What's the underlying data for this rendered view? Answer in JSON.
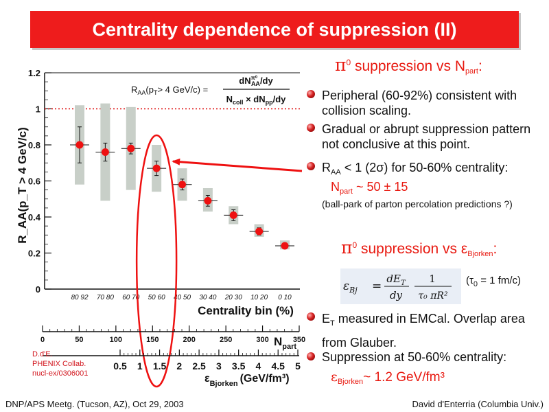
{
  "slide": {
    "title": "Centrality dependence of suppression (II)",
    "footer_left": "DNP/APS Meetg. (Tucson, AZ), Oct 29, 2003",
    "footer_right": "David d'Enterria (Columbia Univ.)"
  },
  "credits": [
    "D.d'E.",
    "PHENIX Collab.",
    "nucl-ex/0306001"
  ],
  "right_panel": {
    "heading1": {
      "symbol": "π",
      "sup": "0",
      "text": " suppression vs N",
      "sub": "part",
      "end": ":"
    },
    "bullet1": "Peripheral (60-92%) consistent with collision scaling.",
    "bullet2": "Gradual or abrupt suppression pattern not conclusive at this point.",
    "bullet3": {
      "pre": "R",
      "sub": "AA",
      "text": " < 1 (2σ) for 50-60% centrality:"
    },
    "npart_line": {
      "pre": "N",
      "sub": "part",
      "text": " ~ 50 ± 15"
    },
    "parton_note": "(ball-park of parton percolation predictions ?)",
    "heading2": {
      "symbol": "π",
      "sup": "0",
      "text": " suppression vs ε",
      "sub": "Bjorken",
      "end": ":"
    },
    "formula": {
      "lhs": "ε",
      "lhs_sub": "Bj",
      "eq": "=",
      "num1": "dE",
      "num1_sub": "T",
      "den1": "dy",
      "num2": "1",
      "den2": "τ₀ πR²"
    },
    "tau_note": {
      "pre": "(τ",
      "sub": "0",
      "text": " = 1 fm/c)"
    },
    "bullet4": {
      "pre": "E",
      "sub": "T",
      "text": " measured in EMCal. Overlap area from Glauber."
    },
    "bullet5": "Suppression at 50-60% centrality:",
    "eps_line": {
      "pre": "ε",
      "sub": "Bjorken",
      "text": "~ 1.2 GeV/fm³"
    }
  },
  "chart_data": {
    "type": "scatter",
    "ylabel": "R_AA(p_T > 4 GeV/c)",
    "ylim": [
      0,
      1.2
    ],
    "yticks": [
      0,
      0.2,
      0.4,
      0.6,
      0.8,
      1,
      1.2
    ],
    "ytick_labels": [
      "0",
      "0.2",
      "0.4",
      "0.6",
      "0.8",
      "1",
      "1.2"
    ],
    "reference_line": 1,
    "formula_label": {
      "lhs": "R",
      "lhs_sub": "AA",
      "lhs_par": "(p",
      "lhs_par_sub": "T",
      "lhs_end": "> 4 GeV/c) =",
      "num": "dN",
      "num_sup": "π⁰",
      "num_sub": "AA",
      "num_end": "/dy",
      "den": "N",
      "den_sub": "coll",
      "den_mid": " × dN",
      "den_sub2": "pp",
      "den_end": "/dy"
    },
    "xlabel": "Centrality bin (%)",
    "categories": [
      "80 92",
      "70 80",
      "60 70",
      "50 60",
      "40 50",
      "30 40",
      "20 30",
      "10 20",
      "0 10"
    ],
    "values": [
      0.8,
      0.76,
      0.78,
      0.67,
      0.58,
      0.49,
      0.41,
      0.32,
      0.24
    ],
    "stat_err": [
      0.1,
      0.05,
      0.03,
      0.04,
      0.03,
      0.03,
      0.03,
      0.02,
      0.01
    ],
    "syst_band": [
      [
        0.58,
        1.02
      ],
      [
        0.49,
        1.03
      ],
      [
        0.55,
        1.01
      ],
      [
        0.54,
        0.8
      ],
      [
        0.49,
        0.67
      ],
      [
        0.43,
        0.56
      ],
      [
        0.36,
        0.46
      ],
      [
        0.29,
        0.36
      ],
      [
        0.22,
        0.27
      ]
    ],
    "npart": {
      "label": "N",
      "label_sub": "part",
      "lim": [
        0,
        350
      ],
      "ticks": [
        0,
        50,
        100,
        150,
        200,
        250,
        300,
        350
      ],
      "tick_labels": [
        "0",
        "50",
        "100",
        "150",
        "200",
        "250",
        "300",
        "350"
      ]
    },
    "bjorken": {
      "label": "ε",
      "label_sub": "Bjorken",
      "unit": "(GeV/fm³)",
      "ticks": [
        0.5,
        1,
        1.5,
        2,
        2.5,
        3,
        3.5,
        4,
        4.5,
        5
      ],
      "tick_labels": [
        "0.5",
        "1",
        "1.5",
        "2",
        "2.5",
        "3",
        "3.5",
        "4",
        "4.5",
        "5"
      ]
    },
    "highlight_category": "50 60",
    "colors": {
      "point": "#ee1111",
      "band": "#c8cfc8",
      "ref_line": "#dd0000",
      "ellipse": "#ee1111",
      "arrow": "#ee1111"
    }
  }
}
